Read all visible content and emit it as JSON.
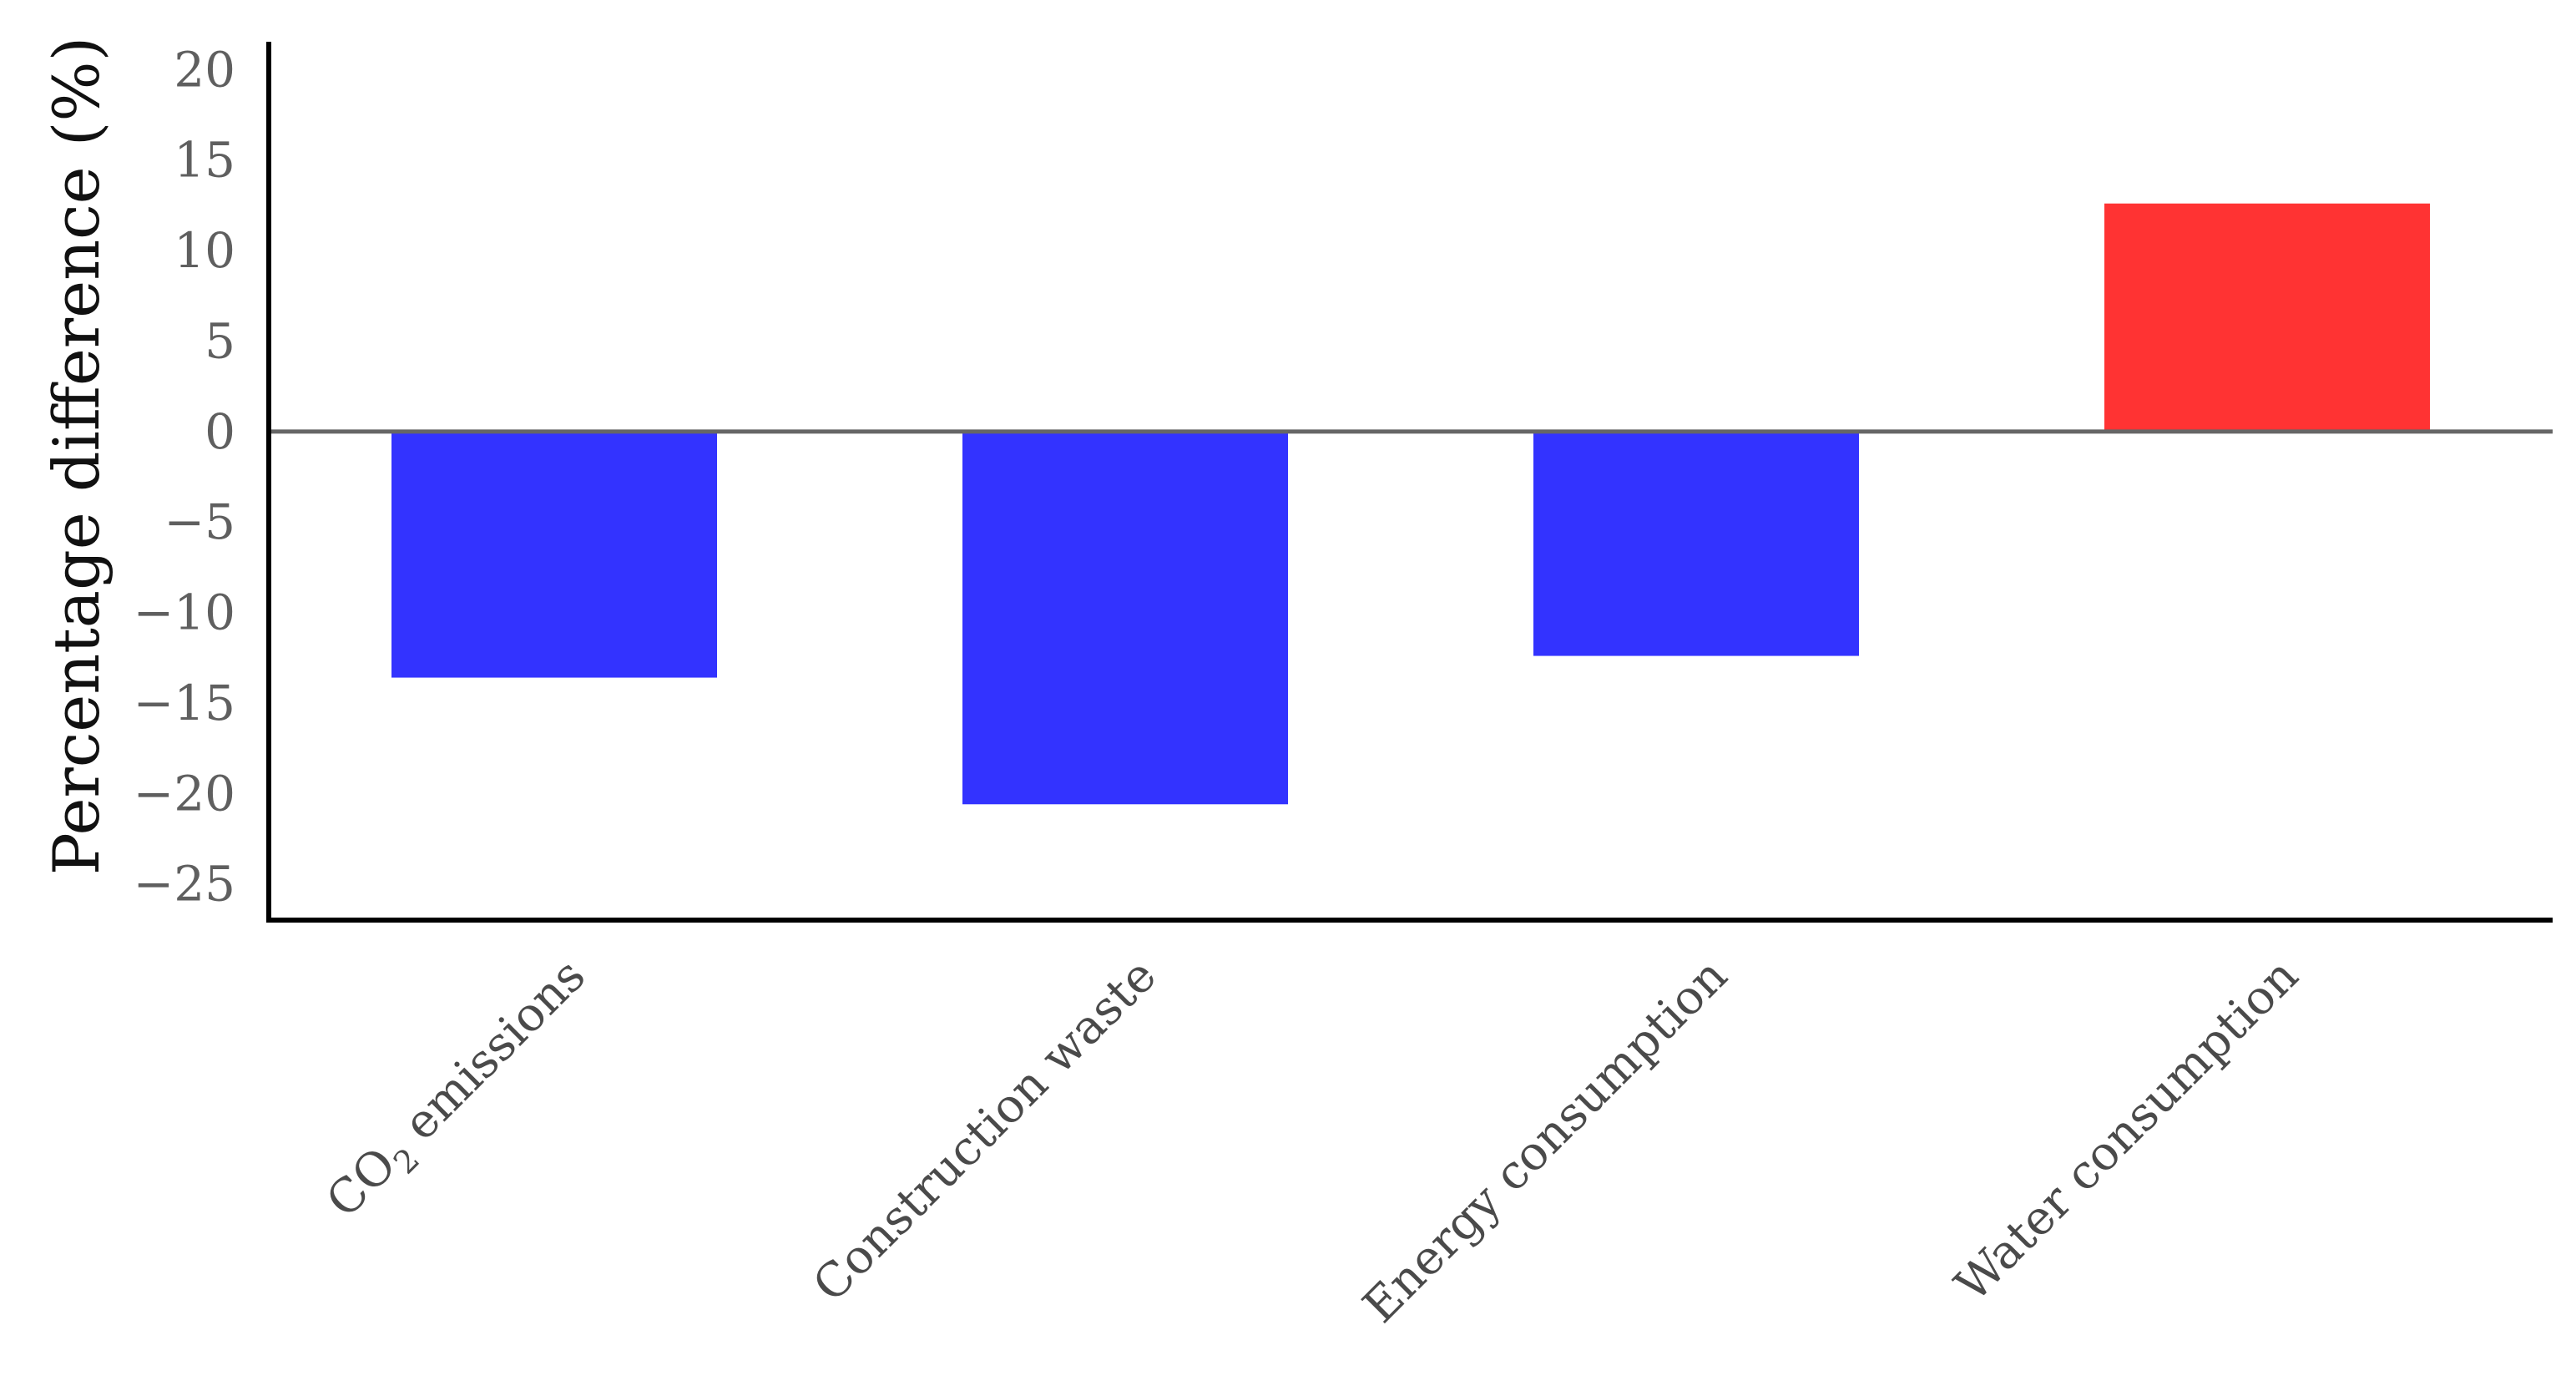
{
  "chart_data": {
    "type": "bar",
    "title": "",
    "xlabel": "",
    "ylabel": "Percentage difference (%)",
    "categories": [
      {
        "main": "CO",
        "sub": "2",
        "rest": " emissions"
      },
      {
        "main": "Construction waste",
        "sub": "",
        "rest": ""
      },
      {
        "main": "Energy consumption",
        "sub": "",
        "rest": ""
      },
      {
        "main": "Water consumption",
        "sub": "",
        "rest": ""
      }
    ],
    "values": [
      -13.6,
      -20.6,
      -12.4,
      12.6
    ],
    "colors": [
      "#3333ff",
      "#3333ff",
      "#3333ff",
      "#ff3333"
    ],
    "ylim": [
      -27,
      22
    ],
    "yticks": [
      20,
      15,
      10,
      5,
      0,
      -5,
      -10,
      -15,
      -20,
      -25
    ],
    "ytick_labels": [
      "20",
      "15",
      "10",
      "5",
      "0",
      "−5",
      "−10",
      "−15",
      "−20",
      "−25"
    ],
    "grid": false,
    "legend": "none"
  }
}
